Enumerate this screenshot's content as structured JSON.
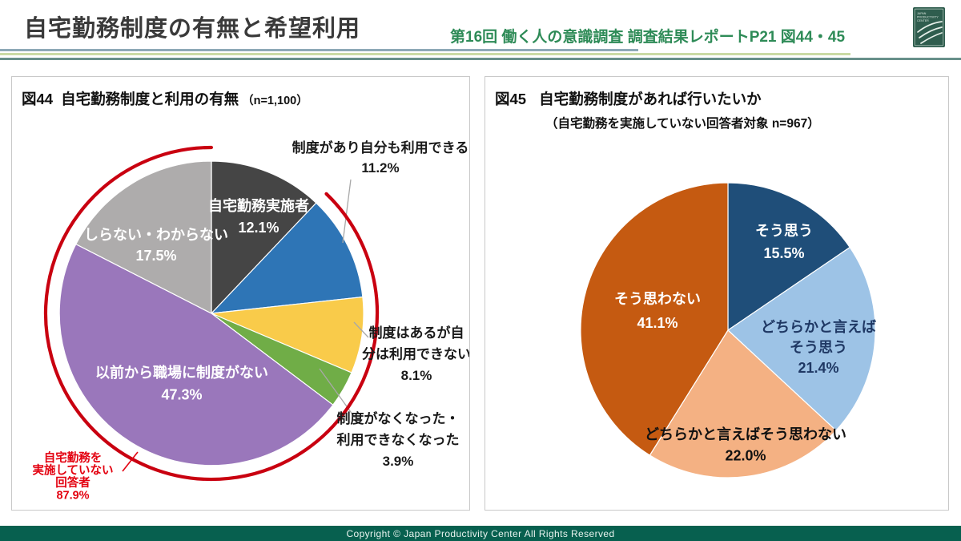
{
  "header": {
    "title": "自宅勤務制度の有無と希望利用",
    "subtitle": "第16回  働く人の意識調査  調査結果レポートP21  図44・45",
    "logo_lines": [
      "JAPAN",
      "PRODUCTIVITY",
      "CENTER"
    ]
  },
  "footer": {
    "text": "Copyright © Japan Productivity Center All Rights Reserved"
  },
  "chart_data": [
    {
      "type": "pie",
      "fig_label": "図44",
      "title": "自宅勤務制度と利用の有無",
      "n_note": "（n=1,100）",
      "n": 1100,
      "slices": [
        {
          "label": "自宅勤務実施者",
          "value": 12.1,
          "display_value": "12.1%",
          "color": "#454545"
        },
        {
          "label": "制度があり自分も利用できる",
          "value": 11.2,
          "display_value": "11.2%",
          "color": "#2E75B6"
        },
        {
          "label": "制度はあるが自分は利用できない",
          "label_lines": [
            "制度はあるが自",
            "分は利用できない"
          ],
          "value": 8.1,
          "display_value": "8.1%",
          "color": "#F9CB4A"
        },
        {
          "label": "制度がなくなった・利用できなくなった",
          "label_lines": [
            "制度がなくなった・",
            "利用できなくなった"
          ],
          "value": 3.9,
          "display_value": "3.9%",
          "color": "#70AD47"
        },
        {
          "label": "以前から職場に制度がない",
          "value": 47.3,
          "display_value": "47.3%",
          "color": "#9A77BB"
        },
        {
          "label": "しらない・わからない",
          "value": 17.5,
          "display_value": "17.5%",
          "color": "#AEACAC"
        }
      ],
      "annotation": {
        "label": "自宅勤務を実施していない回答者",
        "label_lines": [
          "自宅勤務を",
          "実施していない",
          "回答者"
        ],
        "value": 87.9,
        "display_value": "87.9%",
        "text_color": "#E3000F",
        "arc_color": "#C90010"
      }
    },
    {
      "type": "pie",
      "fig_label": "図45",
      "title": "自宅勤務制度があれば行いたいか",
      "n_note": "（自宅勤務を実施していない回答者対象 n=967）",
      "n": 967,
      "slices": [
        {
          "label": "そう思う",
          "value": 15.5,
          "display_value": "15.5%",
          "color": "#1F4E79"
        },
        {
          "label": "どちらかと言えばそう思う",
          "label_lines": [
            "どちらかと言えば",
            "そう思う"
          ],
          "value": 21.4,
          "display_value": "21.4%",
          "color": "#9DC3E6"
        },
        {
          "label": "どちらかと言えばそう思わない",
          "value": 22.0,
          "display_value": "22.0%",
          "color": "#F4B183"
        },
        {
          "label": "そう思わない",
          "value": 41.1,
          "display_value": "41.1%",
          "color": "#C55A11"
        }
      ]
    }
  ]
}
